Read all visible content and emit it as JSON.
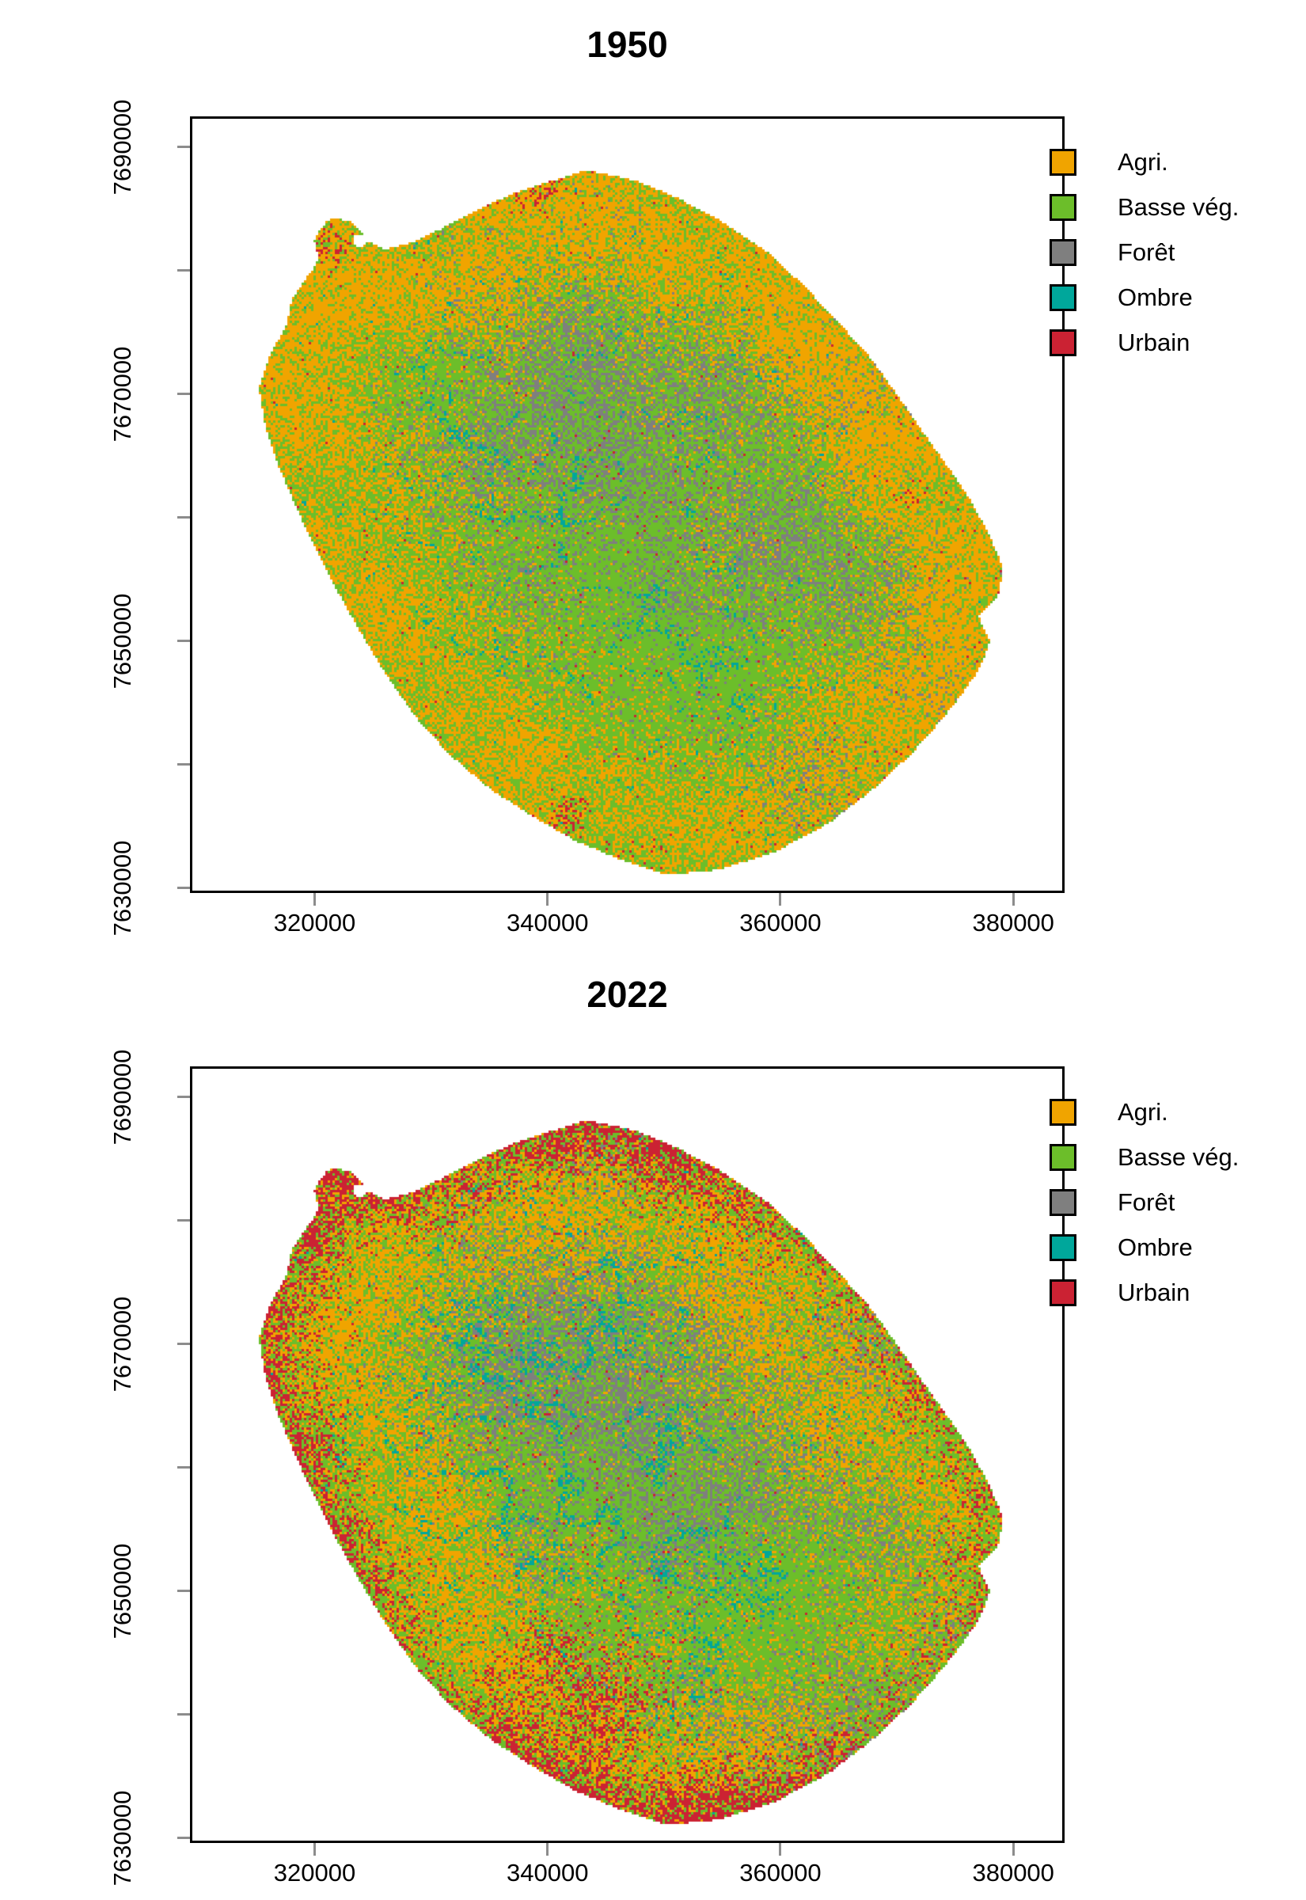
{
  "figure": {
    "background": "#ffffff",
    "panels": [
      {
        "id": "map-1950",
        "title": "1950",
        "era": "1950"
      },
      {
        "id": "map-2022",
        "title": "2022",
        "era": "2022"
      }
    ],
    "axes": {
      "x_range": [
        309500,
        384200
      ],
      "y_range": [
        7629800,
        7692300
      ],
      "x_ticks": [
        {
          "value": 320000,
          "label": "320000"
        },
        {
          "value": 340000,
          "label": "340000"
        },
        {
          "value": 360000,
          "label": "360000"
        },
        {
          "value": 380000,
          "label": "380000"
        }
      ],
      "y_ticks": [
        {
          "value": 7690000,
          "label": "7690000"
        },
        {
          "value": 7680000,
          "label": ""
        },
        {
          "value": 7670000,
          "label": "7670000"
        },
        {
          "value": 7660000,
          "label": ""
        },
        {
          "value": 7650000,
          "label": "7650000"
        },
        {
          "value": 7640000,
          "label": ""
        },
        {
          "value": 7630000,
          "label": "7630000"
        }
      ],
      "tick_color": "#8c8c8c",
      "text_color": "#000000"
    },
    "legend": [
      {
        "key": "agri",
        "label": "Agri.",
        "color": "#F0A400"
      },
      {
        "key": "basse",
        "label": "Basse vég.",
        "color": "#6CBE2A"
      },
      {
        "key": "foret",
        "label": "Forêt",
        "color": "#7F7F7F"
      },
      {
        "key": "ombre",
        "label": "Ombre",
        "color": "#00A79B"
      },
      {
        "key": "urbain",
        "label": "Urbain",
        "color": "#CB2233"
      }
    ]
  }
}
